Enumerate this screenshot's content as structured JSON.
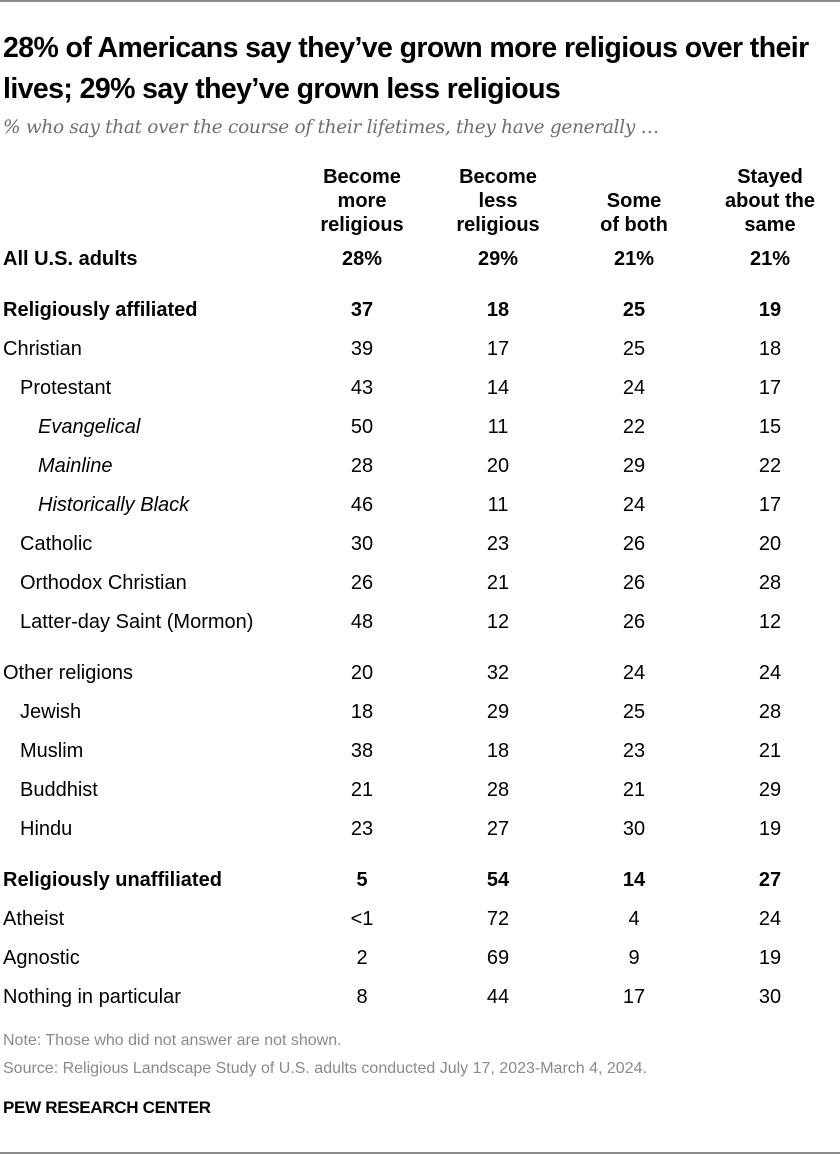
{
  "chart_data": {
    "type": "table",
    "title": "28% of Americans say they’ve grown more religious over their lives; 29% say they’ve grown less religious",
    "subtitle": "% who say that over the course of their lifetimes, they have generally …",
    "columns": [
      [
        "Become",
        "more",
        "religious"
      ],
      [
        "Become",
        "less",
        "religious"
      ],
      [
        "Some",
        "of both"
      ],
      [
        "Stayed",
        "about the",
        "same"
      ]
    ],
    "rows": [
      {
        "label": "All U.S. adults",
        "bold": true,
        "indent": 0,
        "values": [
          "28%",
          "29%",
          "21%",
          "21%"
        ]
      },
      {
        "label": "Religiously affiliated",
        "bold": true,
        "indent": 0,
        "group": true,
        "values": [
          "37",
          "18",
          "25",
          "19"
        ]
      },
      {
        "label": "Christian",
        "indent": 0,
        "values": [
          "39",
          "17",
          "25",
          "18"
        ]
      },
      {
        "label": "Protestant",
        "indent": 1,
        "values": [
          "43",
          "14",
          "24",
          "17"
        ]
      },
      {
        "label": "Evangelical",
        "italic": true,
        "indent": 2,
        "values": [
          "50",
          "11",
          "22",
          "15"
        ]
      },
      {
        "label": "Mainline",
        "italic": true,
        "indent": 2,
        "values": [
          "28",
          "20",
          "29",
          "22"
        ]
      },
      {
        "label": "Historically Black",
        "italic": true,
        "indent": 2,
        "values": [
          "46",
          "11",
          "24",
          "17"
        ]
      },
      {
        "label": "Catholic",
        "indent": 1,
        "values": [
          "30",
          "23",
          "26",
          "20"
        ]
      },
      {
        "label": "Orthodox Christian",
        "indent": 1,
        "values": [
          "26",
          "21",
          "26",
          "28"
        ]
      },
      {
        "label": "Latter-day Saint (Mormon)",
        "indent": 1,
        "values": [
          "48",
          "12",
          "26",
          "12"
        ]
      },
      {
        "label": "Other religions",
        "indent": 0,
        "group": true,
        "values": [
          "20",
          "32",
          "24",
          "24"
        ]
      },
      {
        "label": "Jewish",
        "indent": 1,
        "values": [
          "18",
          "29",
          "25",
          "28"
        ]
      },
      {
        "label": "Muslim",
        "indent": 1,
        "values": [
          "38",
          "18",
          "23",
          "21"
        ]
      },
      {
        "label": "Buddhist",
        "indent": 1,
        "values": [
          "21",
          "28",
          "21",
          "29"
        ]
      },
      {
        "label": "Hindu",
        "indent": 1,
        "values": [
          "23",
          "27",
          "30",
          "19"
        ]
      },
      {
        "label": "Religiously unaffiliated",
        "bold": true,
        "indent": 0,
        "group": true,
        "values": [
          "5",
          "54",
          "14",
          "27"
        ]
      },
      {
        "label": "Atheist",
        "indent": 0,
        "values": [
          "<1",
          "72",
          "4",
          "24"
        ]
      },
      {
        "label": "Agnostic",
        "indent": 0,
        "values": [
          "2",
          "69",
          "9",
          "19"
        ]
      },
      {
        "label": "Nothing in particular",
        "indent": 0,
        "values": [
          "8",
          "44",
          "17",
          "30"
        ]
      }
    ],
    "note": "Note: Those who did not answer are not shown.",
    "source": "Source: Religious Landscape Study of U.S. adults conducted July 17, 2023-March 4, 2024.",
    "brand": "PEW RESEARCH CENTER"
  }
}
